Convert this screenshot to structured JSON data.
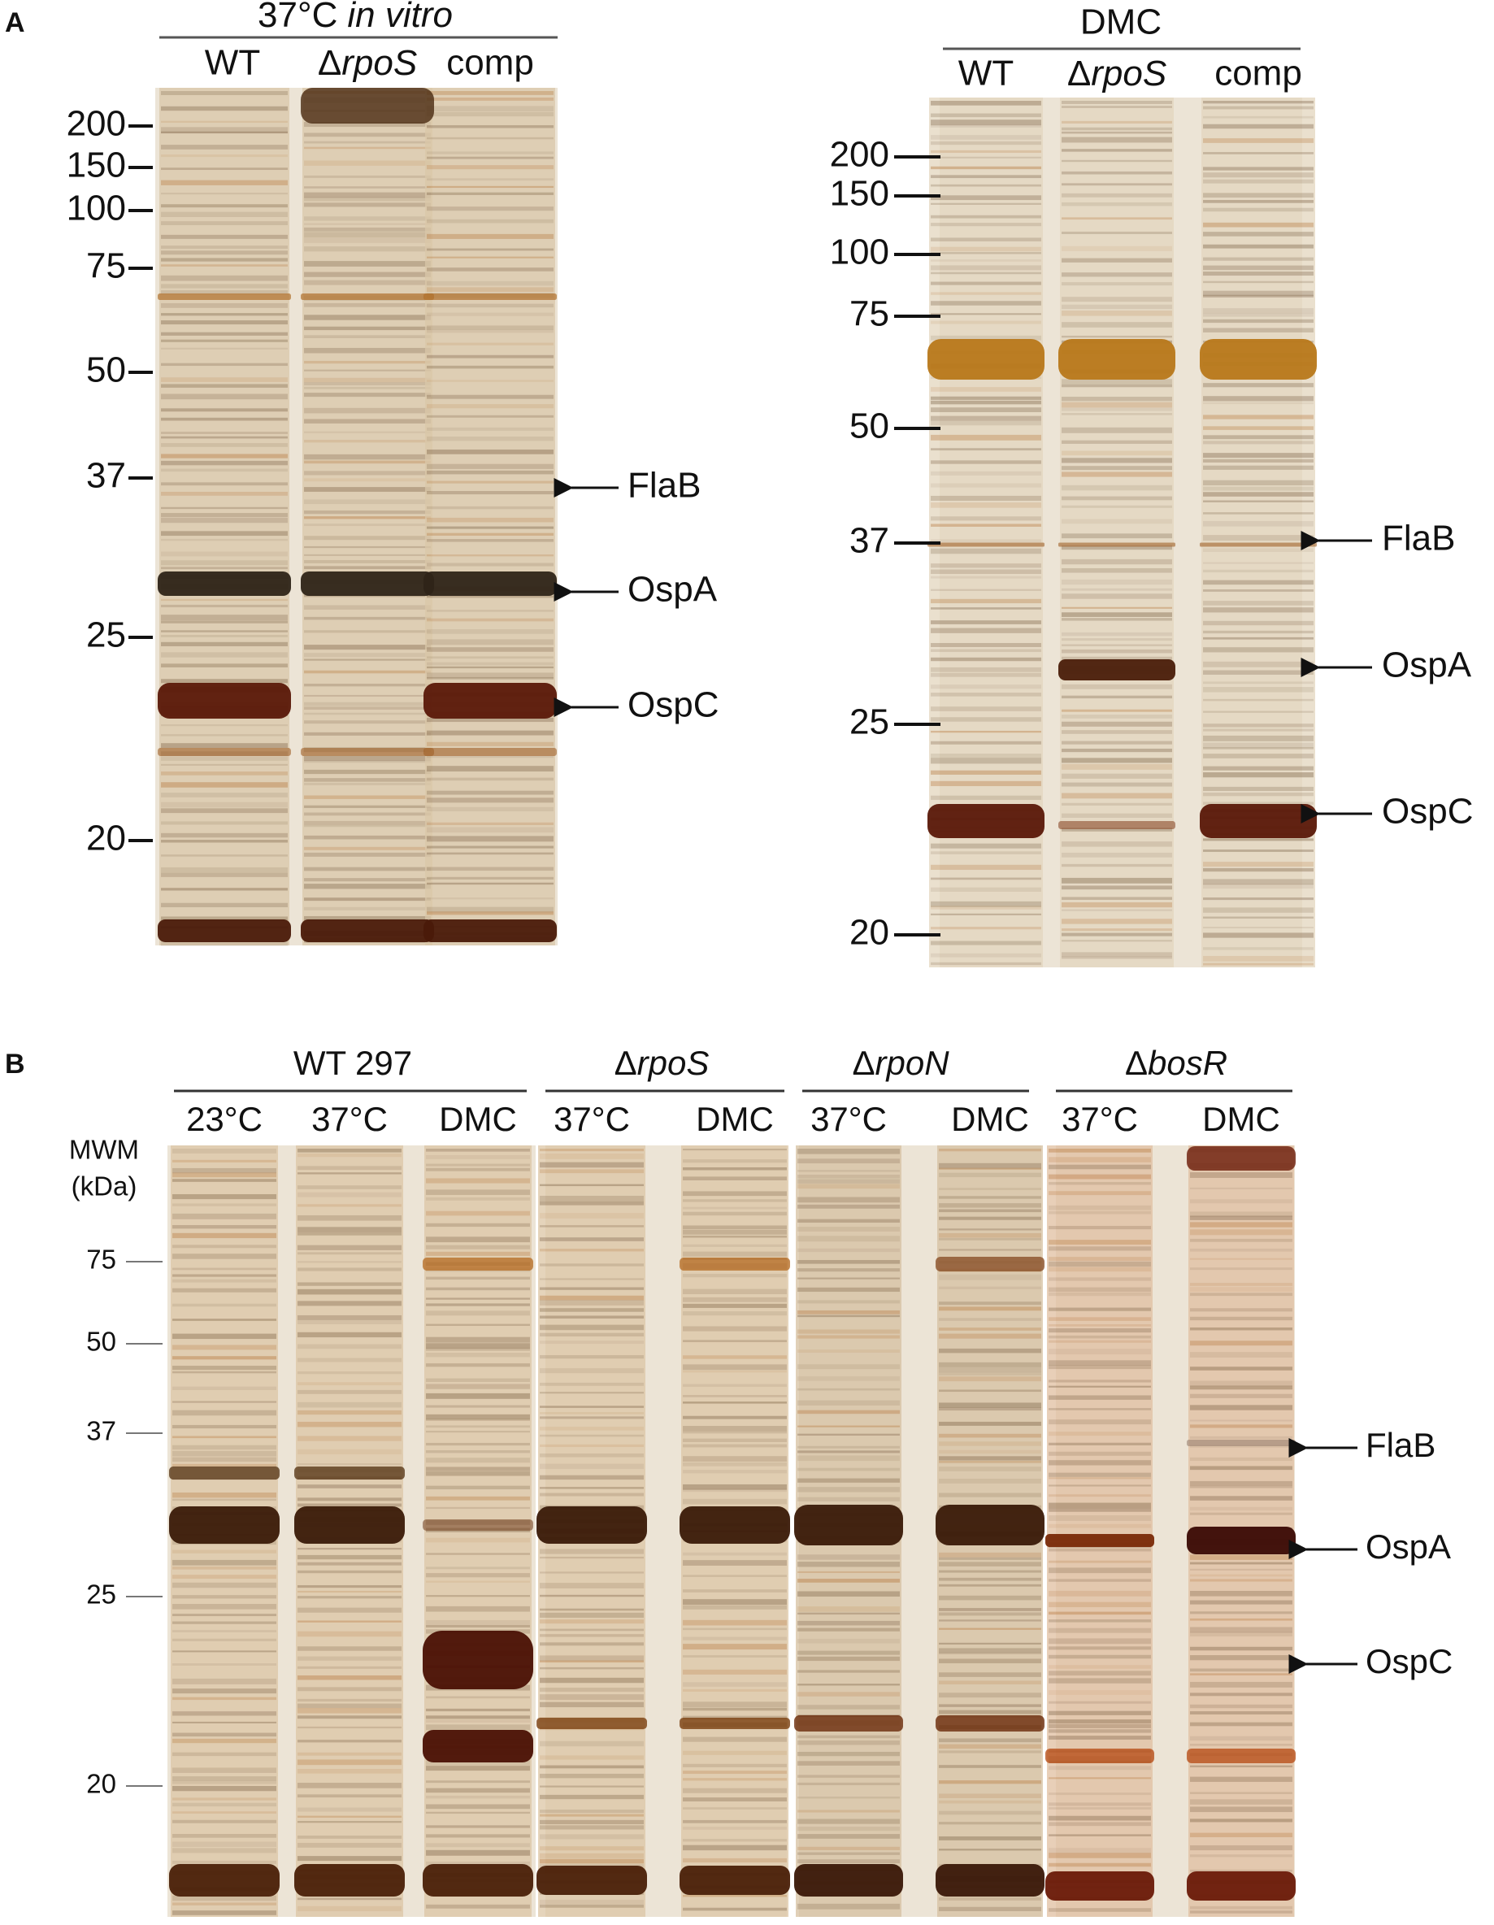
{
  "panel_a": {
    "label": "A",
    "left": {
      "header": {
        "temp": "37°C",
        "condition": "in vitro"
      },
      "lanes": [
        "WT",
        {
          "symbol": "Δ",
          "gene": "rpoS"
        },
        "comp"
      ],
      "markers": [
        200,
        150,
        100,
        75,
        50,
        37,
        25,
        20
      ],
      "annotations": [
        "FlaB",
        "OspA",
        "OspC"
      ]
    },
    "right": {
      "header": "DMC",
      "lanes": [
        "WT",
        {
          "symbol": "Δ",
          "gene": "rpoS"
        },
        "comp"
      ],
      "markers": [
        200,
        150,
        100,
        75,
        50,
        37,
        25,
        20
      ],
      "annotations": [
        "FlaB",
        "OspA",
        "OspC"
      ]
    }
  },
  "panel_b": {
    "label": "B",
    "groups": [
      {
        "name": "WT 297",
        "lanes": [
          "23°C",
          "37°C",
          "DMC"
        ]
      },
      {
        "name": {
          "symbol": "Δ",
          "gene": "rpoS"
        },
        "lanes": [
          "37°C",
          "DMC"
        ]
      },
      {
        "name": {
          "symbol": "Δ",
          "gene": "rpoN"
        },
        "lanes": [
          "37°C",
          "DMC"
        ]
      },
      {
        "name": {
          "symbol": "Δ",
          "gene": "bosR"
        },
        "lanes": [
          "37°C",
          "DMC"
        ]
      }
    ],
    "axis_label": [
      "MWM",
      "(kDa)"
    ],
    "markers": [
      75,
      50,
      37,
      25,
      20
    ],
    "annotations": [
      "FlaB",
      "OspA",
      "OspC"
    ]
  }
}
